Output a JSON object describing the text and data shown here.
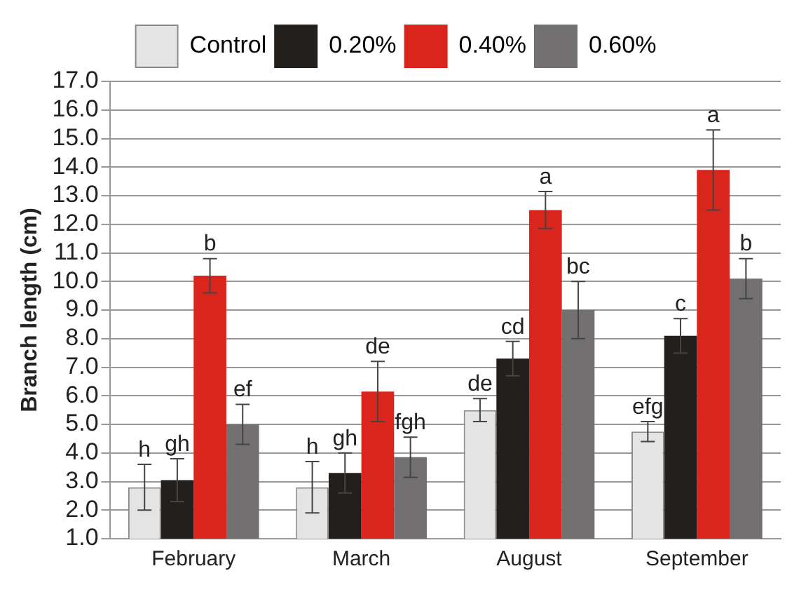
{
  "chart_data": {
    "type": "bar",
    "ylabel": "Branch length (cm)",
    "categories": [
      "February",
      "March",
      "August",
      "September"
    ],
    "series": [
      {
        "name": "Control",
        "color": "#e4e4e4",
        "values": [
          2.8,
          2.8,
          5.5,
          4.75
        ],
        "errors": [
          0.8,
          0.9,
          0.4,
          0.35
        ],
        "value_labels": [
          "h",
          "h",
          "de",
          "efg"
        ]
      },
      {
        "name": "0.20%",
        "color": "#231f1c",
        "values": [
          3.05,
          3.3,
          7.3,
          8.1
        ],
        "errors": [
          0.75,
          0.7,
          0.6,
          0.6
        ],
        "value_labels": [
          "gh",
          "gh",
          "cd",
          "c"
        ]
      },
      {
        "name": "0.40%",
        "color": "#da251d",
        "values": [
          10.2,
          6.15,
          12.5,
          13.9
        ],
        "errors": [
          0.6,
          1.05,
          0.65,
          1.4
        ],
        "value_labels": [
          "b",
          "de",
          "a",
          "a"
        ]
      },
      {
        "name": "0.60%",
        "color": "#727071",
        "values": [
          5.0,
          3.85,
          9.0,
          10.1
        ],
        "errors": [
          0.7,
          0.7,
          1.0,
          0.7
        ],
        "value_labels": [
          "ef",
          "fgh",
          "bc",
          "b"
        ]
      }
    ],
    "ylim": [
      1,
      17
    ],
    "yticks": [
      {
        "value": 1,
        "label": "1.0"
      },
      {
        "value": 2,
        "label": "2.0"
      },
      {
        "value": 3,
        "label": "3.0"
      },
      {
        "value": 4,
        "label": "4.0"
      },
      {
        "value": 5,
        "label": "5.0"
      },
      {
        "value": 6,
        "label": "6.0"
      },
      {
        "value": 7,
        "label": "7.0"
      },
      {
        "value": 8,
        "label": "8.0"
      },
      {
        "value": 9,
        "label": "9.0"
      },
      {
        "value": 10,
        "label": "10.0"
      },
      {
        "value": 11,
        "label": "11.0"
      },
      {
        "value": 12,
        "label": "12.0"
      },
      {
        "value": 13,
        "label": "13.0"
      },
      {
        "value": 14,
        "label": "14.0"
      },
      {
        "value": 15,
        "label": "15.0"
      },
      {
        "value": 16,
        "label": "16.0"
      },
      {
        "value": 17,
        "label": "17.0"
      }
    ],
    "grid": "y",
    "legend": "top"
  }
}
